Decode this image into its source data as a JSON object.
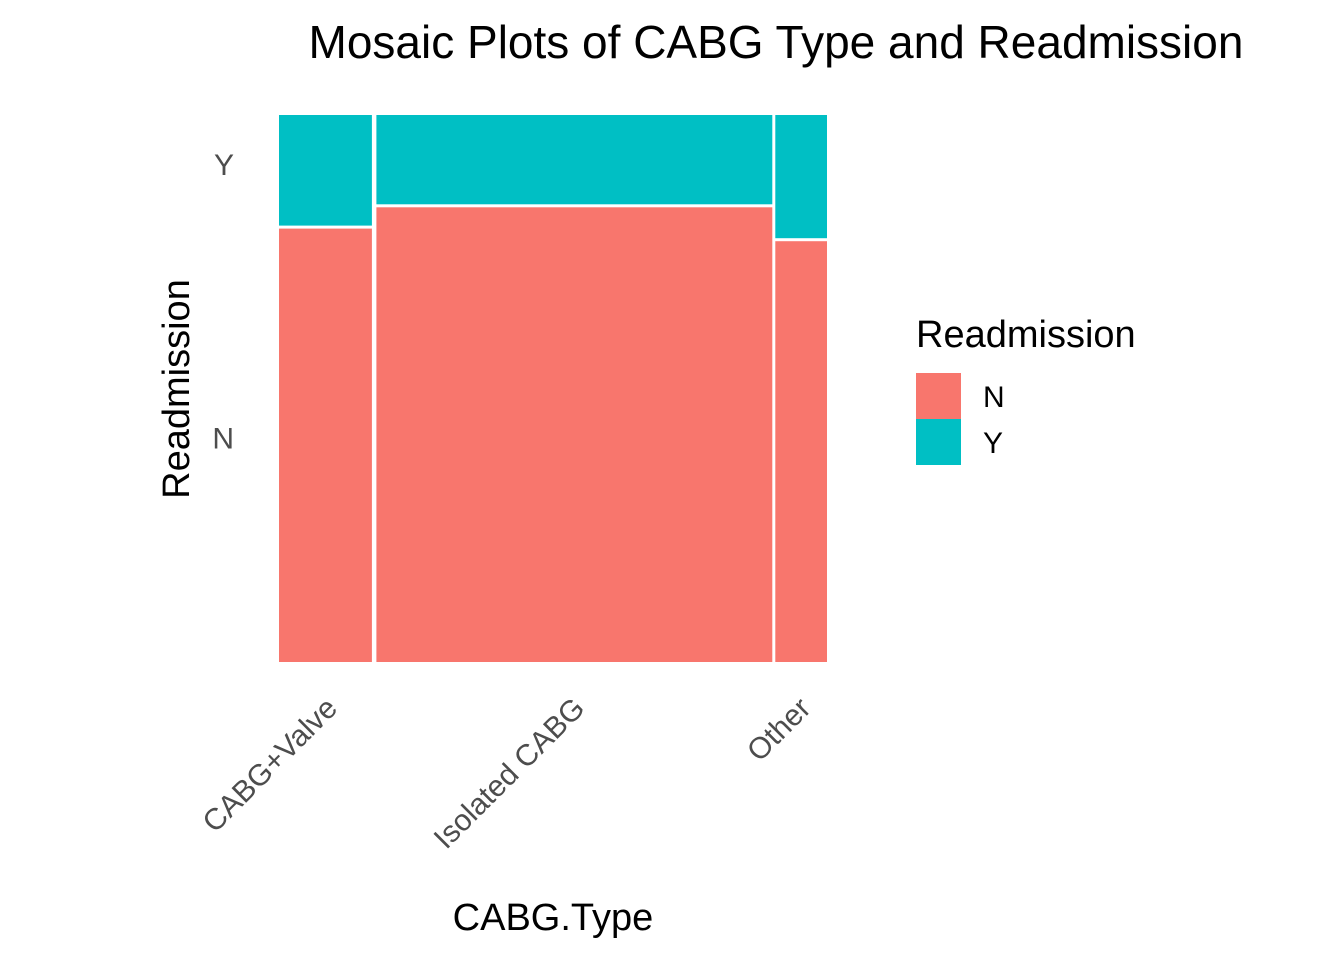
{
  "chart_data": {
    "type": "mosaic",
    "title": "Mosaic Plots of CABG Type and Readmission",
    "xlabel": "CABG.Type",
    "ylabel": "Readmission",
    "categories": [
      "CABG+Valve",
      "Isolated CABG",
      "Other"
    ],
    "category_share": [
      0.175,
      0.728,
      0.097
    ],
    "y_levels": [
      "N",
      "Y"
    ],
    "series": [
      {
        "name": "N",
        "values": [
          0.795,
          0.834,
          0.772
        ]
      },
      {
        "name": "Y",
        "values": [
          0.205,
          0.166,
          0.228
        ]
      }
    ],
    "colors": {
      "N": "#F8766D",
      "Y": "#00BFC4"
    },
    "legend": {
      "title": "Readmission",
      "position": "right"
    },
    "grid": false
  }
}
